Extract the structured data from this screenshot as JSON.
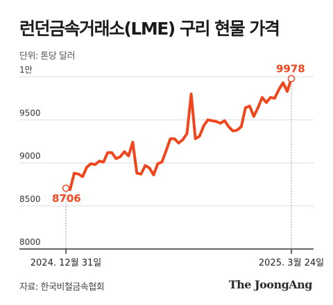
{
  "title": "런던금속거래소(LME) 구리 현물 가격",
  "unit_note": "단위: 톤당 달러",
  "source": "자료: 한국비철금속협회",
  "brand": "The JoongAng",
  "colors": {
    "line": "#f0461e",
    "grid": "#dddddd",
    "axis": "#333333"
  },
  "chart_data": {
    "type": "line",
    "title": "런던금속거래소(LME) 구리 현물 가격",
    "ylabel": "단위: 톤당 달러",
    "ylim": [
      8000,
      10000
    ],
    "yticks": [
      {
        "value": 8000,
        "label": "8000"
      },
      {
        "value": 8500,
        "label": "8500"
      },
      {
        "value": 9000,
        "label": "9000"
      },
      {
        "value": 9500,
        "label": "9500"
      },
      {
        "value": 10000,
        "label": "1만"
      }
    ],
    "x_start_label": "2024. 12월 31일",
    "x_end_label": "2025. 3월 24일",
    "start_value_label": "8706",
    "end_value_label": "9978",
    "grid": true,
    "series": [
      {
        "values": [
          8706,
          8690,
          8880,
          8870,
          8840,
          8950,
          8990,
          8980,
          9020,
          9010,
          9120,
          9120,
          9050,
          9070,
          9130,
          9080,
          9240,
          8880,
          8870,
          8970,
          8940,
          8860,
          8990,
          9010,
          9140,
          9280,
          9280,
          9230,
          9270,
          9340,
          9800,
          9280,
          9310,
          9430,
          9500,
          9490,
          9480,
          9460,
          9490,
          9420,
          9370,
          9380,
          9420,
          9640,
          9660,
          9540,
          9640,
          9760,
          9700,
          9760,
          9750,
          9850,
          9930,
          9830,
          9978
        ]
      }
    ]
  }
}
